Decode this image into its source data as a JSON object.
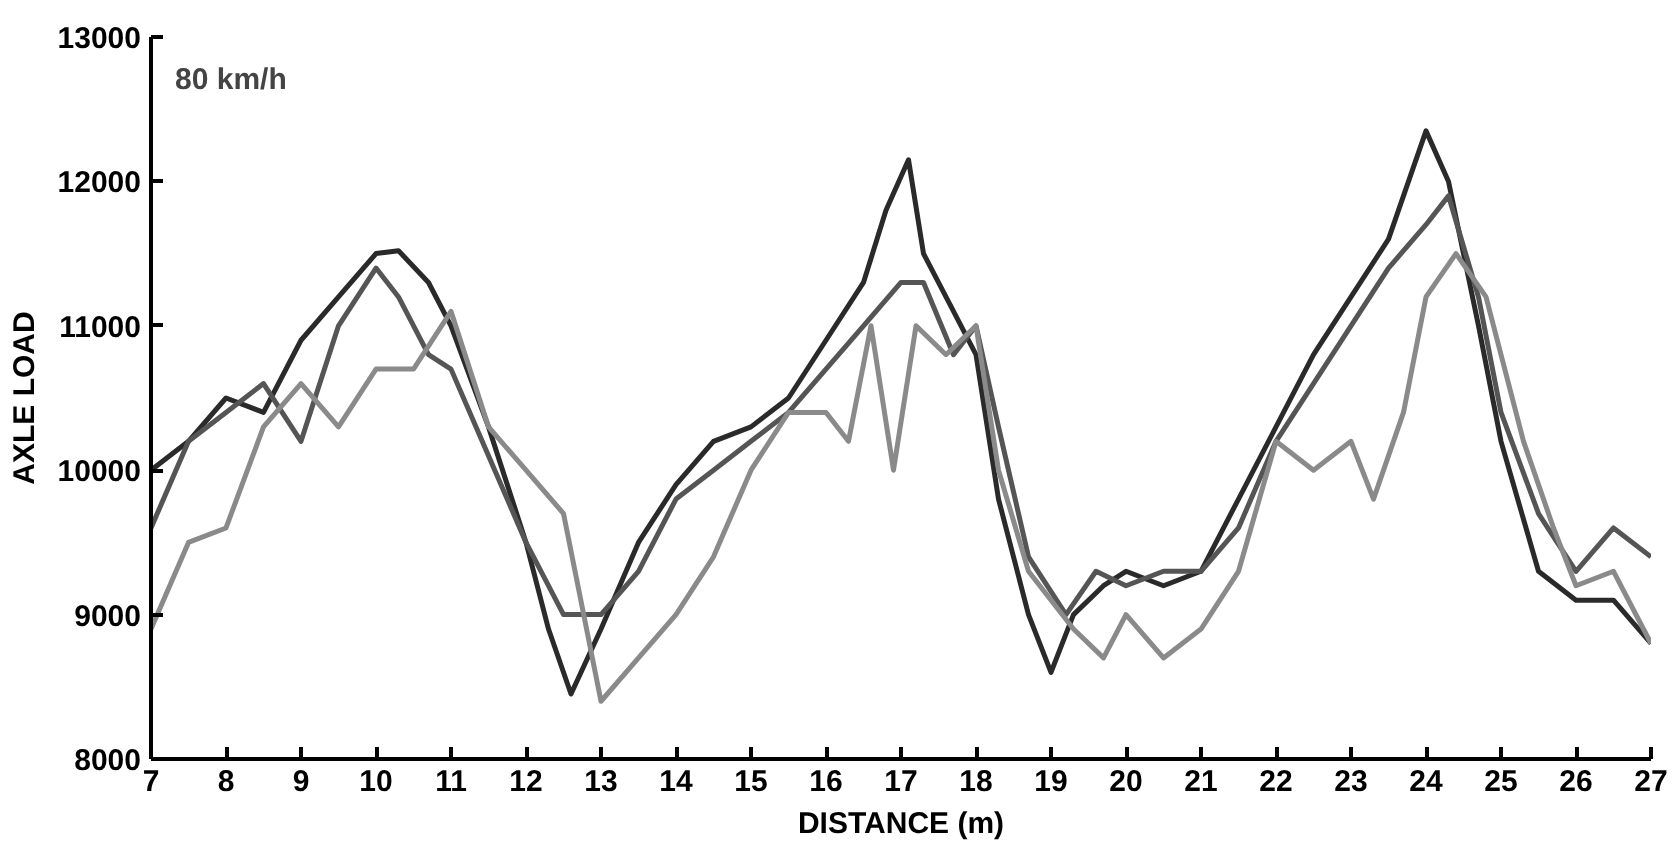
{
  "chart_data": {
    "type": "line",
    "xlabel": "DISTANCE (m)",
    "ylabel": "AXLE LOAD",
    "annotations": [
      "80 km/h"
    ],
    "xlim": [
      7,
      27
    ],
    "xticks": [
      7,
      8,
      9,
      10,
      11,
      12,
      13,
      14,
      15,
      16,
      17,
      18,
      19,
      20,
      21,
      22,
      23,
      24,
      25,
      26,
      27
    ],
    "ylim": [
      8000,
      13000
    ],
    "yticks": [
      8000,
      9000,
      10000,
      11000,
      12000,
      13000
    ],
    "grid": false,
    "line_style": "solid",
    "series": [
      {
        "color": "#2a2a2a",
        "x": [
          7,
          7.5,
          8,
          8.5,
          9,
          9.5,
          10,
          10.3,
          10.7,
          11,
          11.5,
          12,
          12.3,
          12.6,
          13,
          13.5,
          14,
          14.5,
          15,
          15.5,
          16,
          16.5,
          16.8,
          17.1,
          17.3,
          17.6,
          18,
          18.3,
          18.7,
          19,
          19.3,
          19.7,
          20,
          20.5,
          21,
          21.5,
          22,
          22.5,
          23,
          23.5,
          24,
          24.3,
          24.7,
          25,
          25.5,
          26,
          26.5,
          27
        ],
        "values": [
          10000,
          10200,
          10500,
          10400,
          10900,
          11200,
          11500,
          11520,
          11300,
          11000,
          10300,
          9500,
          8900,
          8450,
          8900,
          9500,
          9900,
          10200,
          10300,
          10500,
          10900,
          11300,
          11800,
          12150,
          11500,
          11200,
          10800,
          9800,
          9000,
          8600,
          9000,
          9200,
          9300,
          9200,
          9300,
          9800,
          10300,
          10800,
          11200,
          11600,
          12350,
          12000,
          11000,
          10200,
          9300,
          9100,
          9100,
          8800
        ]
      },
      {
        "color": "#555555",
        "x": [
          7,
          7.5,
          8,
          8.5,
          9,
          9.5,
          10,
          10.3,
          10.7,
          11,
          11.5,
          12,
          12.5,
          13,
          13.5,
          14,
          14.5,
          15,
          15.5,
          16,
          16.5,
          17,
          17.3,
          17.7,
          18,
          18.3,
          18.7,
          19.2,
          19.6,
          20,
          20.5,
          21,
          21.5,
          22,
          22.5,
          23,
          23.5,
          24,
          24.3,
          24.7,
          25,
          25.5,
          26,
          26.5,
          27
        ],
        "values": [
          9600,
          10200,
          10400,
          10600,
          10200,
          11000,
          11400,
          11200,
          10800,
          10700,
          10100,
          9500,
          9000,
          9000,
          9300,
          9800,
          10000,
          10200,
          10400,
          10700,
          11000,
          11300,
          11300,
          10800,
          11000,
          10300,
          9400,
          9000,
          9300,
          9200,
          9300,
          9300,
          9600,
          10200,
          10600,
          11000,
          11400,
          11700,
          11900,
          11200,
          10400,
          9700,
          9300,
          9600,
          9400
        ]
      },
      {
        "color": "#8a8a8a",
        "x": [
          7,
          7.5,
          8,
          8.5,
          9,
          9.5,
          10,
          10.5,
          11,
          11.5,
          12,
          12.5,
          13,
          13.5,
          14,
          14.5,
          15,
          15.5,
          16,
          16.3,
          16.6,
          16.9,
          17.2,
          17.6,
          18,
          18.3,
          18.7,
          19.3,
          19.7,
          20,
          20.5,
          21,
          21.5,
          22,
          22.5,
          23,
          23.3,
          23.7,
          24,
          24.4,
          24.8,
          25.3,
          25.7,
          26,
          26.5,
          27
        ],
        "values": [
          8900,
          9500,
          9600,
          10300,
          10600,
          10300,
          10700,
          10700,
          11100,
          10300,
          10000,
          9700,
          8400,
          8700,
          9000,
          9400,
          10000,
          10400,
          10400,
          10200,
          11000,
          10000,
          11000,
          10800,
          11000,
          10000,
          9300,
          8900,
          8700,
          9000,
          8700,
          8900,
          9300,
          10200,
          10000,
          10200,
          9800,
          10400,
          11200,
          11500,
          11200,
          10200,
          9600,
          9200,
          9300,
          8800
        ]
      }
    ]
  }
}
